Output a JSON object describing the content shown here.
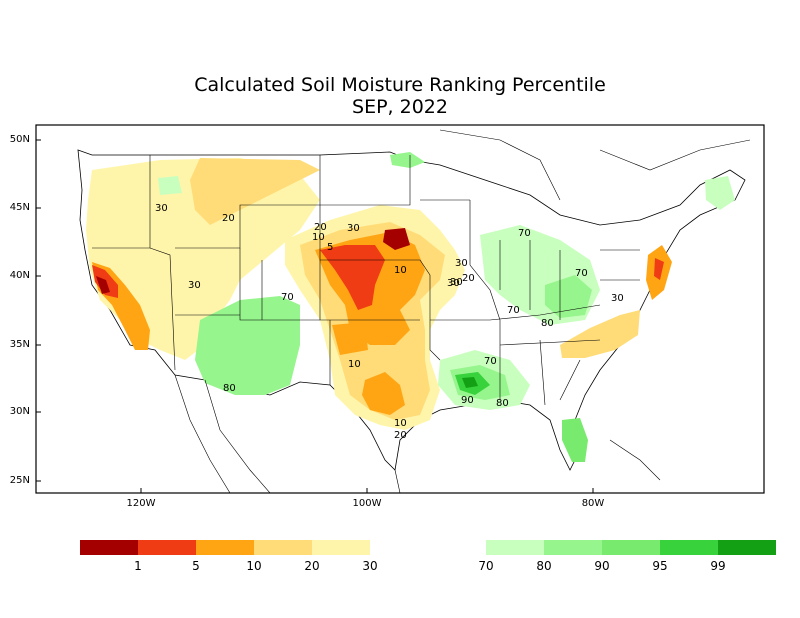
{
  "title": "Calculated Soil Moisture Ranking Percentile",
  "subtitle": "SEP, 2022",
  "lat_labels": [
    "50N",
    "45N",
    "40N",
    "35N",
    "30N",
    "25N"
  ],
  "lon_labels": [
    "120W",
    "100W",
    "80W"
  ],
  "contour_labels": [
    "30",
    "20",
    "30",
    "20",
    "10",
    "30",
    "5",
    "10",
    "30",
    "20",
    "30",
    "70",
    "30",
    "70",
    "70",
    "80",
    "30",
    "10",
    "70",
    "90",
    "80",
    "10",
    "20",
    "80",
    "70"
  ],
  "legend": {
    "swatches": [
      {
        "color": "#a50000",
        "label": "1"
      },
      {
        "color": "#f03c14",
        "label": "5"
      },
      {
        "color": "#ffa514",
        "label": "10"
      },
      {
        "color": "#ffdc78",
        "label": "20"
      },
      {
        "color": "#fff5aa",
        "label": "30"
      },
      {
        "color": "#ffffff",
        "label": "70"
      },
      {
        "color": "#c8ffbe",
        "label": "80"
      },
      {
        "color": "#96f58c",
        "label": "90"
      },
      {
        "color": "#78eb6e",
        "label": "95"
      },
      {
        "color": "#37d23c",
        "label": "99"
      },
      {
        "color": "#14a014",
        "label": ""
      }
    ]
  }
}
